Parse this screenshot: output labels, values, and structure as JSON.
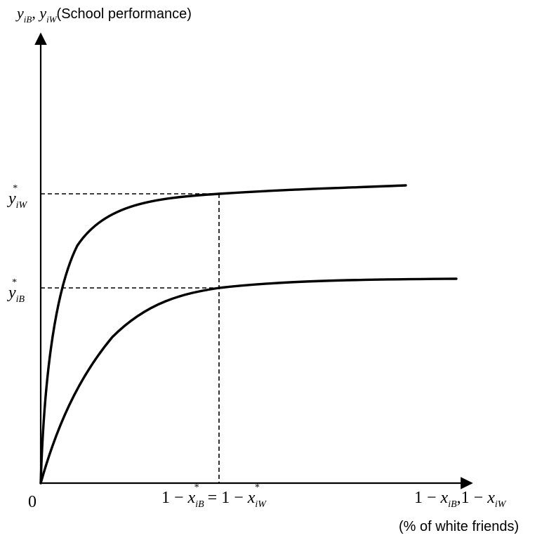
{
  "diagram": {
    "y_axis_label": {
      "sym1_base": "y",
      "sym1_sub": "iB",
      "comma": ", ",
      "sym2_base": "y",
      "sym2_sub": "iW",
      "text": "(School performance)"
    },
    "x_axis_label": {
      "one_a": "1",
      "minus_a": " − ",
      "x_a": "x",
      "sub_a": "iB",
      "comma": ",",
      "one_b": "1",
      "minus_b": " − ",
      "x_b": "x",
      "sub_b": "iW",
      "text": "(% of white friends)"
    },
    "origin_label": "0",
    "y_tick_upper": {
      "base": "y",
      "sub": "iW",
      "sup": "*"
    },
    "y_tick_lower": {
      "base": "y",
      "sub": "iB",
      "sup": "*"
    },
    "x_tick": {
      "one_a": "1",
      "minus_a": " − ",
      "x_a": "x",
      "sub_a": "iB",
      "sup_a": "*",
      "equals": " = ",
      "one_b": "1",
      "minus_b": " − ",
      "x_b": "x",
      "sub_b": "iW",
      "sup_b": "*"
    },
    "curves": [
      {
        "curve": "upper",
        "reference": "y_iW*",
        "stroke": "#000000"
      },
      {
        "curve": "lower",
        "reference": "y_iB*",
        "stroke": "#000000"
      }
    ],
    "colors": {
      "line": "#000000",
      "background": "#ffffff"
    }
  }
}
